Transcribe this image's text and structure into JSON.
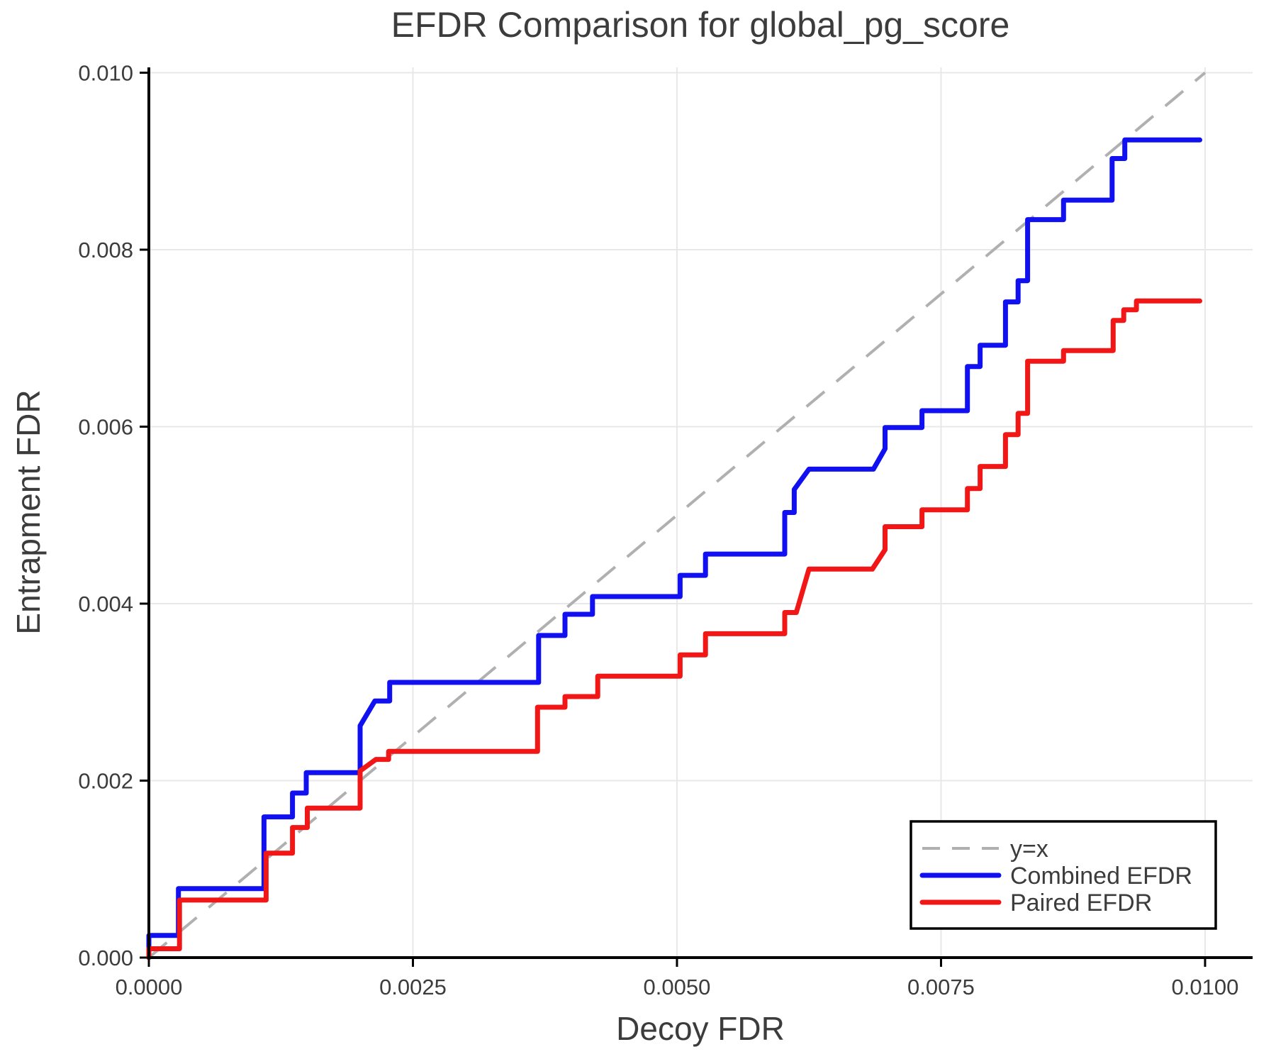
{
  "chart_data": {
    "type": "line",
    "title": "EFDR Comparison for global_pg_score",
    "xlabel": "Decoy FDR",
    "ylabel": "Entrapment FDR",
    "xlim": [
      0,
      0.01045
    ],
    "ylim": [
      0,
      0.01006
    ],
    "grid": true,
    "legend_position": "lower right",
    "x_ticks": [
      {
        "v": 0.0,
        "label": "0.0000"
      },
      {
        "v": 0.0025,
        "label": "0.0025"
      },
      {
        "v": 0.005,
        "label": "0.0050"
      },
      {
        "v": 0.0075,
        "label": "0.0075"
      },
      {
        "v": 0.01,
        "label": "0.0100"
      }
    ],
    "y_ticks": [
      {
        "v": 0.0,
        "label": "0.000"
      },
      {
        "v": 0.002,
        "label": "0.002"
      },
      {
        "v": 0.004,
        "label": "0.004"
      },
      {
        "v": 0.006,
        "label": "0.006"
      },
      {
        "v": 0.008,
        "label": "0.008"
      },
      {
        "v": 0.01,
        "label": "0.010"
      }
    ],
    "reference_line": {
      "name": "y=x",
      "from": [
        0,
        0
      ],
      "to": [
        0.01,
        0.01
      ],
      "color": "#b0b0b0",
      "dashed": true
    },
    "legend": {
      "entries": [
        {
          "label": "y=x",
          "color": "#b0b0b0",
          "dashed": true
        },
        {
          "label": "Combined EFDR",
          "color": "#1010f0",
          "dashed": false
        },
        {
          "label": "Paired EFDR",
          "color": "#f21717",
          "dashed": false
        }
      ]
    },
    "series": [
      {
        "name": "Combined EFDR",
        "color": "#1010f0",
        "points": [
          [
            0.0,
            0.0
          ],
          [
            0.0,
            0.00025
          ],
          [
            0.00028,
            0.00025
          ],
          [
            0.00028,
            0.00078
          ],
          [
            0.00109,
            0.00078
          ],
          [
            0.00109,
            0.00159
          ],
          [
            0.00136,
            0.00159
          ],
          [
            0.00136,
            0.00186
          ],
          [
            0.00149,
            0.00186
          ],
          [
            0.00149,
            0.00209
          ],
          [
            0.002,
            0.00209
          ],
          [
            0.002,
            0.00262
          ],
          [
            0.00214,
            0.0029
          ],
          [
            0.00228,
            0.0029
          ],
          [
            0.00228,
            0.00311
          ],
          [
            0.00369,
            0.00311
          ],
          [
            0.00369,
            0.00364
          ],
          [
            0.00394,
            0.00364
          ],
          [
            0.00394,
            0.00388
          ],
          [
            0.0042,
            0.00388
          ],
          [
            0.0042,
            0.00408
          ],
          [
            0.00503,
            0.00408
          ],
          [
            0.00503,
            0.00432
          ],
          [
            0.00527,
            0.00432
          ],
          [
            0.00527,
            0.00456
          ],
          [
            0.00602,
            0.00456
          ],
          [
            0.00602,
            0.00503
          ],
          [
            0.00611,
            0.00503
          ],
          [
            0.00611,
            0.00529
          ],
          [
            0.00625,
            0.00552
          ],
          [
            0.00686,
            0.00552
          ],
          [
            0.00697,
            0.00575
          ],
          [
            0.00697,
            0.00599
          ],
          [
            0.00732,
            0.00599
          ],
          [
            0.00732,
            0.00618
          ],
          [
            0.00775,
            0.00618
          ],
          [
            0.00775,
            0.00668
          ],
          [
            0.00787,
            0.00668
          ],
          [
            0.00787,
            0.00692
          ],
          [
            0.00811,
            0.00692
          ],
          [
            0.00811,
            0.00741
          ],
          [
            0.00823,
            0.00741
          ],
          [
            0.00823,
            0.00765
          ],
          [
            0.00832,
            0.00765
          ],
          [
            0.00832,
            0.00834
          ],
          [
            0.00866,
            0.00834
          ],
          [
            0.00866,
            0.00856
          ],
          [
            0.00912,
            0.00856
          ],
          [
            0.00912,
            0.00903
          ],
          [
            0.00924,
            0.00903
          ],
          [
            0.00924,
            0.00924
          ],
          [
            0.00995,
            0.00924
          ]
        ]
      },
      {
        "name": "Paired EFDR",
        "color": "#f21717",
        "points": [
          [
            0.0,
            0.0
          ],
          [
            0.0,
            0.0001
          ],
          [
            0.00029,
            0.0001
          ],
          [
            0.00029,
            0.00065
          ],
          [
            0.00111,
            0.00065
          ],
          [
            0.00111,
            0.00118
          ],
          [
            0.00136,
            0.00118
          ],
          [
            0.00136,
            0.00147
          ],
          [
            0.0015,
            0.00147
          ],
          [
            0.0015,
            0.00169
          ],
          [
            0.002,
            0.00169
          ],
          [
            0.002,
            0.00211
          ],
          [
            0.00215,
            0.00224
          ],
          [
            0.00227,
            0.00224
          ],
          [
            0.00227,
            0.00233
          ],
          [
            0.00368,
            0.00233
          ],
          [
            0.00368,
            0.00283
          ],
          [
            0.00394,
            0.00283
          ],
          [
            0.00394,
            0.00295
          ],
          [
            0.00425,
            0.00295
          ],
          [
            0.00425,
            0.00318
          ],
          [
            0.00503,
            0.00318
          ],
          [
            0.00503,
            0.00342
          ],
          [
            0.00527,
            0.00342
          ],
          [
            0.00527,
            0.00366
          ],
          [
            0.00602,
            0.00366
          ],
          [
            0.00602,
            0.0039
          ],
          [
            0.00613,
            0.0039
          ],
          [
            0.00625,
            0.00439
          ],
          [
            0.00685,
            0.00439
          ],
          [
            0.00697,
            0.00461
          ],
          [
            0.00697,
            0.00487
          ],
          [
            0.00732,
            0.00487
          ],
          [
            0.00732,
            0.00506
          ],
          [
            0.00775,
            0.00506
          ],
          [
            0.00775,
            0.0053
          ],
          [
            0.00787,
            0.0053
          ],
          [
            0.00787,
            0.00555
          ],
          [
            0.00811,
            0.00555
          ],
          [
            0.00811,
            0.00591
          ],
          [
            0.00823,
            0.00591
          ],
          [
            0.00823,
            0.00615
          ],
          [
            0.00832,
            0.00615
          ],
          [
            0.00832,
            0.00674
          ],
          [
            0.00866,
            0.00674
          ],
          [
            0.00866,
            0.00686
          ],
          [
            0.00913,
            0.00686
          ],
          [
            0.00913,
            0.0072
          ],
          [
            0.00923,
            0.0072
          ],
          [
            0.00923,
            0.00732
          ],
          [
            0.00935,
            0.00732
          ],
          [
            0.00935,
            0.00742
          ],
          [
            0.00995,
            0.00742
          ]
        ]
      }
    ],
    "colors": {
      "background": "#ffffff",
      "text": "#3c3c3c",
      "grid": "#e8e8e8",
      "spine": "#000000",
      "legend_border": "#000000"
    }
  }
}
